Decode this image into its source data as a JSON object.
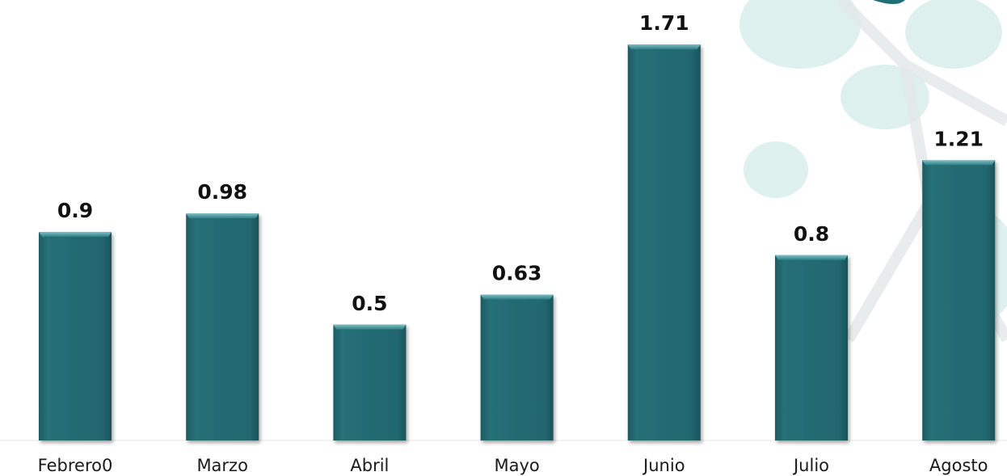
{
  "chart_data": {
    "type": "bar",
    "categories": [
      "Febrero0",
      "Marzo",
      "Abril",
      "Mayo",
      "Junio",
      "Julio",
      "Agosto"
    ],
    "values": [
      0.9,
      0.98,
      0.5,
      0.63,
      1.71,
      0.8,
      1.21
    ],
    "value_labels": [
      "0.9",
      "0.98",
      "0.5",
      "0.63",
      "1.71",
      "0.8",
      "1.21"
    ],
    "title": "",
    "xlabel": "",
    "ylabel": "",
    "ylim": [
      0,
      1.8
    ],
    "grid": false,
    "legend": "none",
    "colors": {
      "bar": "#236870",
      "bar_top": "#5aa3a8",
      "bar_edge": "#1b5157",
      "label": "#111111",
      "watermark": "#d6ecea"
    }
  },
  "decoration": {
    "watermark_icon": "leaf-molecule-watermark-icon"
  }
}
